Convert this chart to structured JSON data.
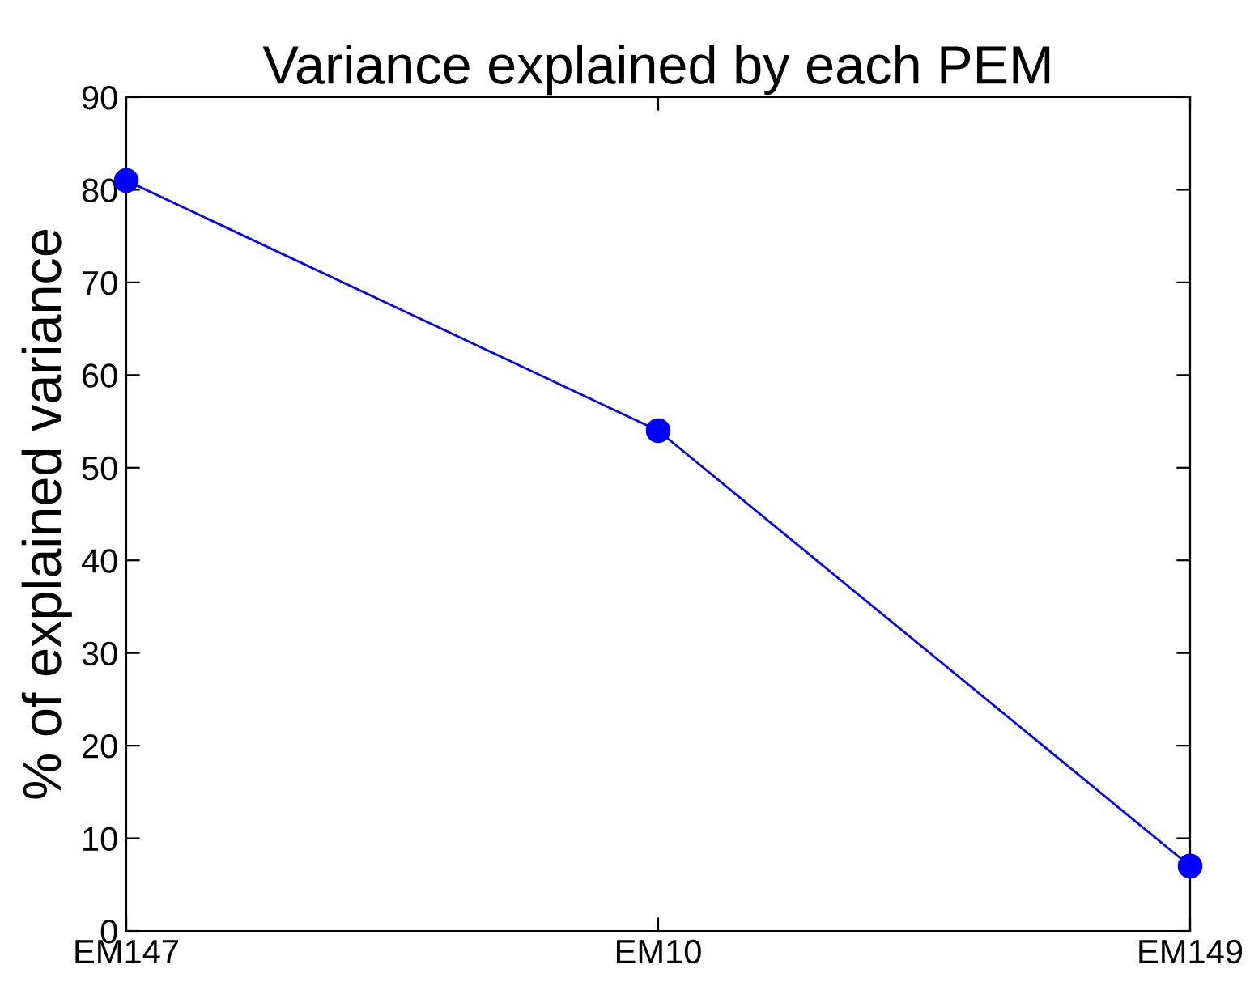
{
  "chart_data": {
    "type": "line",
    "title": "Variance explained by each PEM",
    "ylabel": "% of explained variance",
    "categories": [
      "EM147",
      "EM10",
      "EM149"
    ],
    "series": [
      {
        "color": "#0000ff",
        "values": [
          81,
          54,
          7
        ]
      }
    ],
    "ylim": [
      0,
      90
    ],
    "yticks": [
      0,
      10,
      20,
      30,
      40,
      50,
      60,
      70,
      80,
      90
    ],
    "grid": false,
    "legend": false,
    "marker": "circle",
    "line_style": "solid"
  }
}
